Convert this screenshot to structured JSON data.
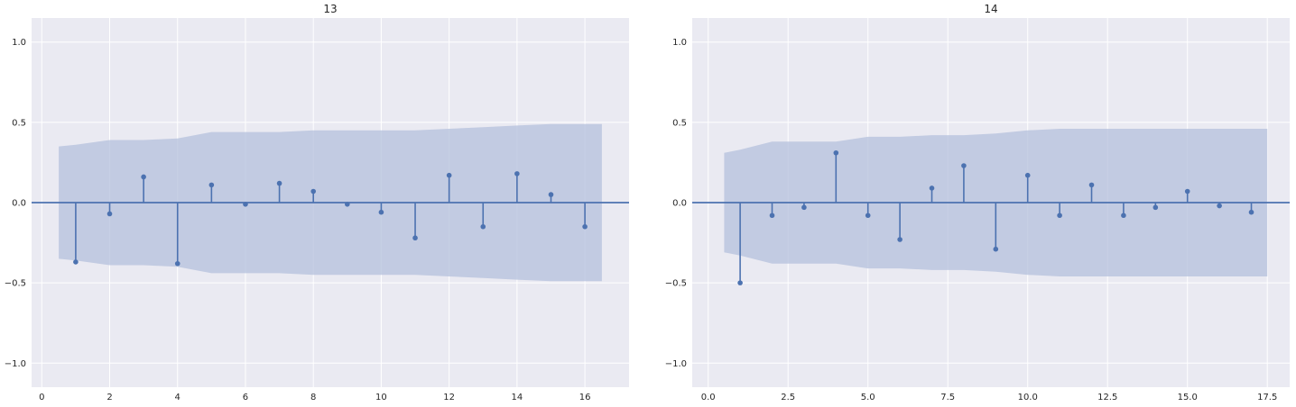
{
  "colors": {
    "plot_background": "#eaeaf2",
    "grid": "#ffffff",
    "stem": "#4c72b0",
    "confidence_band": "#b4c0dc",
    "text": "#262626"
  },
  "chart_data": [
    {
      "type": "stem",
      "title": "13",
      "xlim": [
        -0.3,
        17.3
      ],
      "ylim": [
        -1.15,
        1.15
      ],
      "xticks": [
        0,
        2,
        4,
        6,
        8,
        10,
        12,
        14,
        16
      ],
      "xtick_labels": [
        "0",
        "2",
        "4",
        "6",
        "8",
        "10",
        "12",
        "14",
        "16"
      ],
      "yticks": [
        -1.0,
        -0.5,
        0.0,
        0.5,
        1.0
      ],
      "ytick_labels": [
        "−1.0",
        "−0.5",
        "0.0",
        "0.5",
        "1.0"
      ],
      "grid": true,
      "zero_line": true,
      "lags": [
        1,
        2,
        3,
        4,
        5,
        6,
        7,
        8,
        9,
        10,
        11,
        12,
        13,
        14,
        15,
        16
      ],
      "values": [
        -0.37,
        -0.07,
        0.16,
        -0.38,
        0.11,
        -0.01,
        0.12,
        0.07,
        -0.01,
        -0.06,
        -0.22,
        0.17,
        -0.15,
        0.18,
        0.05,
        -0.15
      ],
      "confidence_band": {
        "x": [
          0.5,
          1,
          2,
          3,
          4,
          5,
          6,
          7,
          8,
          9,
          10,
          11,
          12,
          13,
          14,
          15,
          16,
          16.5
        ],
        "upper": [
          0.35,
          0.36,
          0.39,
          0.39,
          0.4,
          0.44,
          0.44,
          0.44,
          0.45,
          0.45,
          0.45,
          0.45,
          0.46,
          0.47,
          0.48,
          0.49,
          0.49,
          0.49
        ],
        "lower": [
          -0.35,
          -0.36,
          -0.39,
          -0.39,
          -0.4,
          -0.44,
          -0.44,
          -0.44,
          -0.45,
          -0.45,
          -0.45,
          -0.45,
          -0.46,
          -0.47,
          -0.48,
          -0.49,
          -0.49,
          -0.49
        ]
      }
    },
    {
      "type": "stem",
      "title": "14",
      "xlim": [
        -0.5,
        18.2
      ],
      "ylim": [
        -1.15,
        1.15
      ],
      "xticks": [
        0,
        2.5,
        5,
        7.5,
        10,
        12.5,
        15,
        17.5
      ],
      "xtick_labels": [
        "0.0",
        "2.5",
        "5.0",
        "7.5",
        "10.0",
        "12.5",
        "15.0",
        "17.5"
      ],
      "yticks": [
        -1.0,
        -0.5,
        0.0,
        0.5,
        1.0
      ],
      "ytick_labels": [
        "−1.0",
        "−0.5",
        "0.0",
        "0.5",
        "1.0"
      ],
      "grid": true,
      "zero_line": true,
      "lags": [
        1,
        2,
        3,
        4,
        5,
        6,
        7,
        8,
        9,
        10,
        11,
        12,
        13,
        14,
        15,
        16,
        17
      ],
      "values": [
        -0.5,
        -0.08,
        -0.03,
        0.31,
        -0.08,
        -0.23,
        0.09,
        0.23,
        -0.29,
        0.17,
        -0.08,
        0.11,
        -0.08,
        -0.03,
        0.07,
        -0.02,
        -0.06
      ],
      "confidence_band": {
        "x": [
          0.5,
          1,
          2,
          3,
          4,
          5,
          6,
          7,
          8,
          9,
          10,
          11,
          12,
          13,
          14,
          15,
          16,
          17,
          17.5
        ],
        "upper": [
          0.31,
          0.33,
          0.38,
          0.38,
          0.38,
          0.41,
          0.41,
          0.42,
          0.42,
          0.43,
          0.45,
          0.46,
          0.46,
          0.46,
          0.46,
          0.46,
          0.46,
          0.46,
          0.46
        ],
        "lower": [
          -0.31,
          -0.33,
          -0.38,
          -0.38,
          -0.38,
          -0.41,
          -0.41,
          -0.42,
          -0.42,
          -0.43,
          -0.45,
          -0.46,
          -0.46,
          -0.46,
          -0.46,
          -0.46,
          -0.46,
          -0.46,
          -0.46
        ]
      }
    }
  ]
}
